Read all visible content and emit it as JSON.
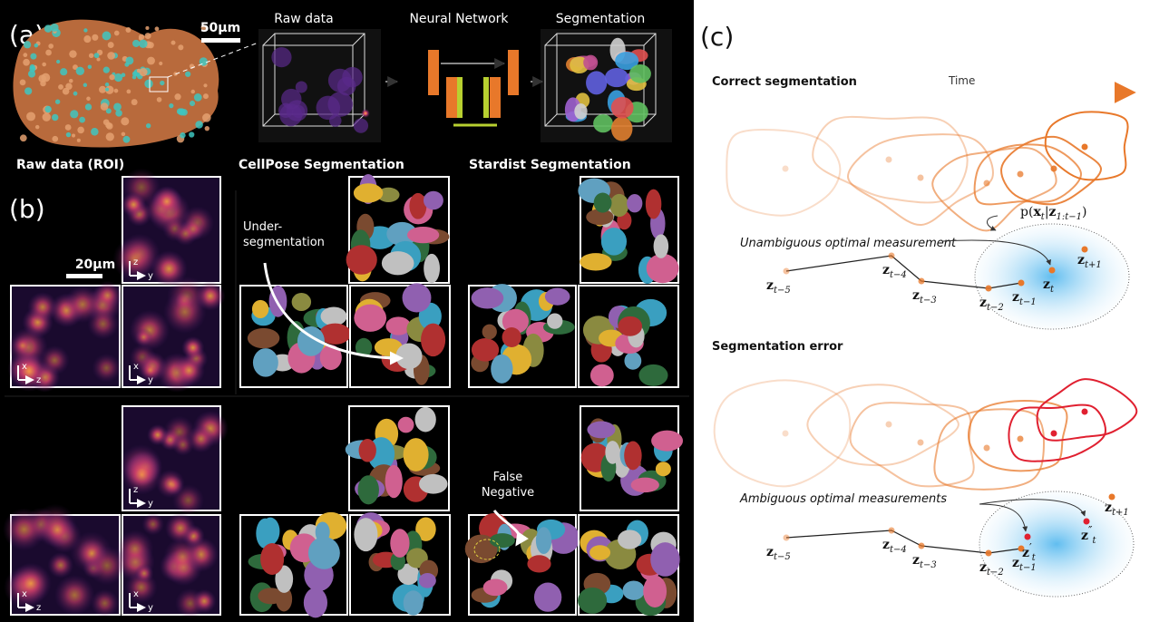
{
  "panel_a": {
    "label": "(a)",
    "scale_bar": "50µm",
    "steps": [
      "Raw data",
      "Neural Network",
      "Segmentation"
    ]
  },
  "panel_b": {
    "label": "(b)",
    "scale_bar": "20µm",
    "columns": [
      "Raw data (ROI)",
      "CellPose Segmentation",
      "Stardist Segmentation"
    ],
    "axes": [
      [
        "z",
        "y"
      ],
      [
        "x",
        "z"
      ],
      [
        "x",
        "y"
      ]
    ],
    "under_segmentation": [
      "Under-",
      "segmentation"
    ],
    "false_negative": [
      "False",
      "Negative"
    ]
  },
  "panel_c": {
    "label": "(c)",
    "time": "Time",
    "density": [
      {
        "t": "p("
      },
      {
        "t": "x",
        "bold": true
      },
      {
        "t": "t",
        "sub": true
      },
      {
        "t": "|"
      },
      {
        "t": "z",
        "bold": true
      },
      {
        "t": "1:t−1",
        "sub": true
      },
      {
        "t": ")"
      }
    ],
    "sections": [
      {
        "title": "Correct segmentation",
        "annotation": "Unambiguous optimal measurement",
        "points": [
          {
            "base": "z",
            "sub": "t−5"
          },
          {
            "base": "z",
            "sub": "t−4"
          },
          {
            "base": "z",
            "sub": "t−3"
          },
          {
            "base": "z",
            "sub": "t−2"
          },
          {
            "base": "z",
            "sub": "t−1"
          },
          {
            "base": "z",
            "sub": "t"
          },
          {
            "base": "z",
            "sub": "t+1"
          }
        ]
      },
      {
        "title": "Segmentation error",
        "annotation": "Ambiguous optimal measurements",
        "points": [
          {
            "base": "z",
            "sub": "t−5"
          },
          {
            "base": "z",
            "sub": "t−4"
          },
          {
            "base": "z",
            "sub": "t−3"
          },
          {
            "base": "z",
            "sub": "t−2"
          },
          {
            "base": "z",
            "sub": "t−1"
          },
          {
            "base": "z",
            "sup": "′",
            "sub": "t"
          },
          {
            "base": "z",
            "sup": "″",
            "sub": "t"
          },
          {
            "base": "z",
            "sub": "t+1"
          }
        ]
      }
    ]
  }
}
